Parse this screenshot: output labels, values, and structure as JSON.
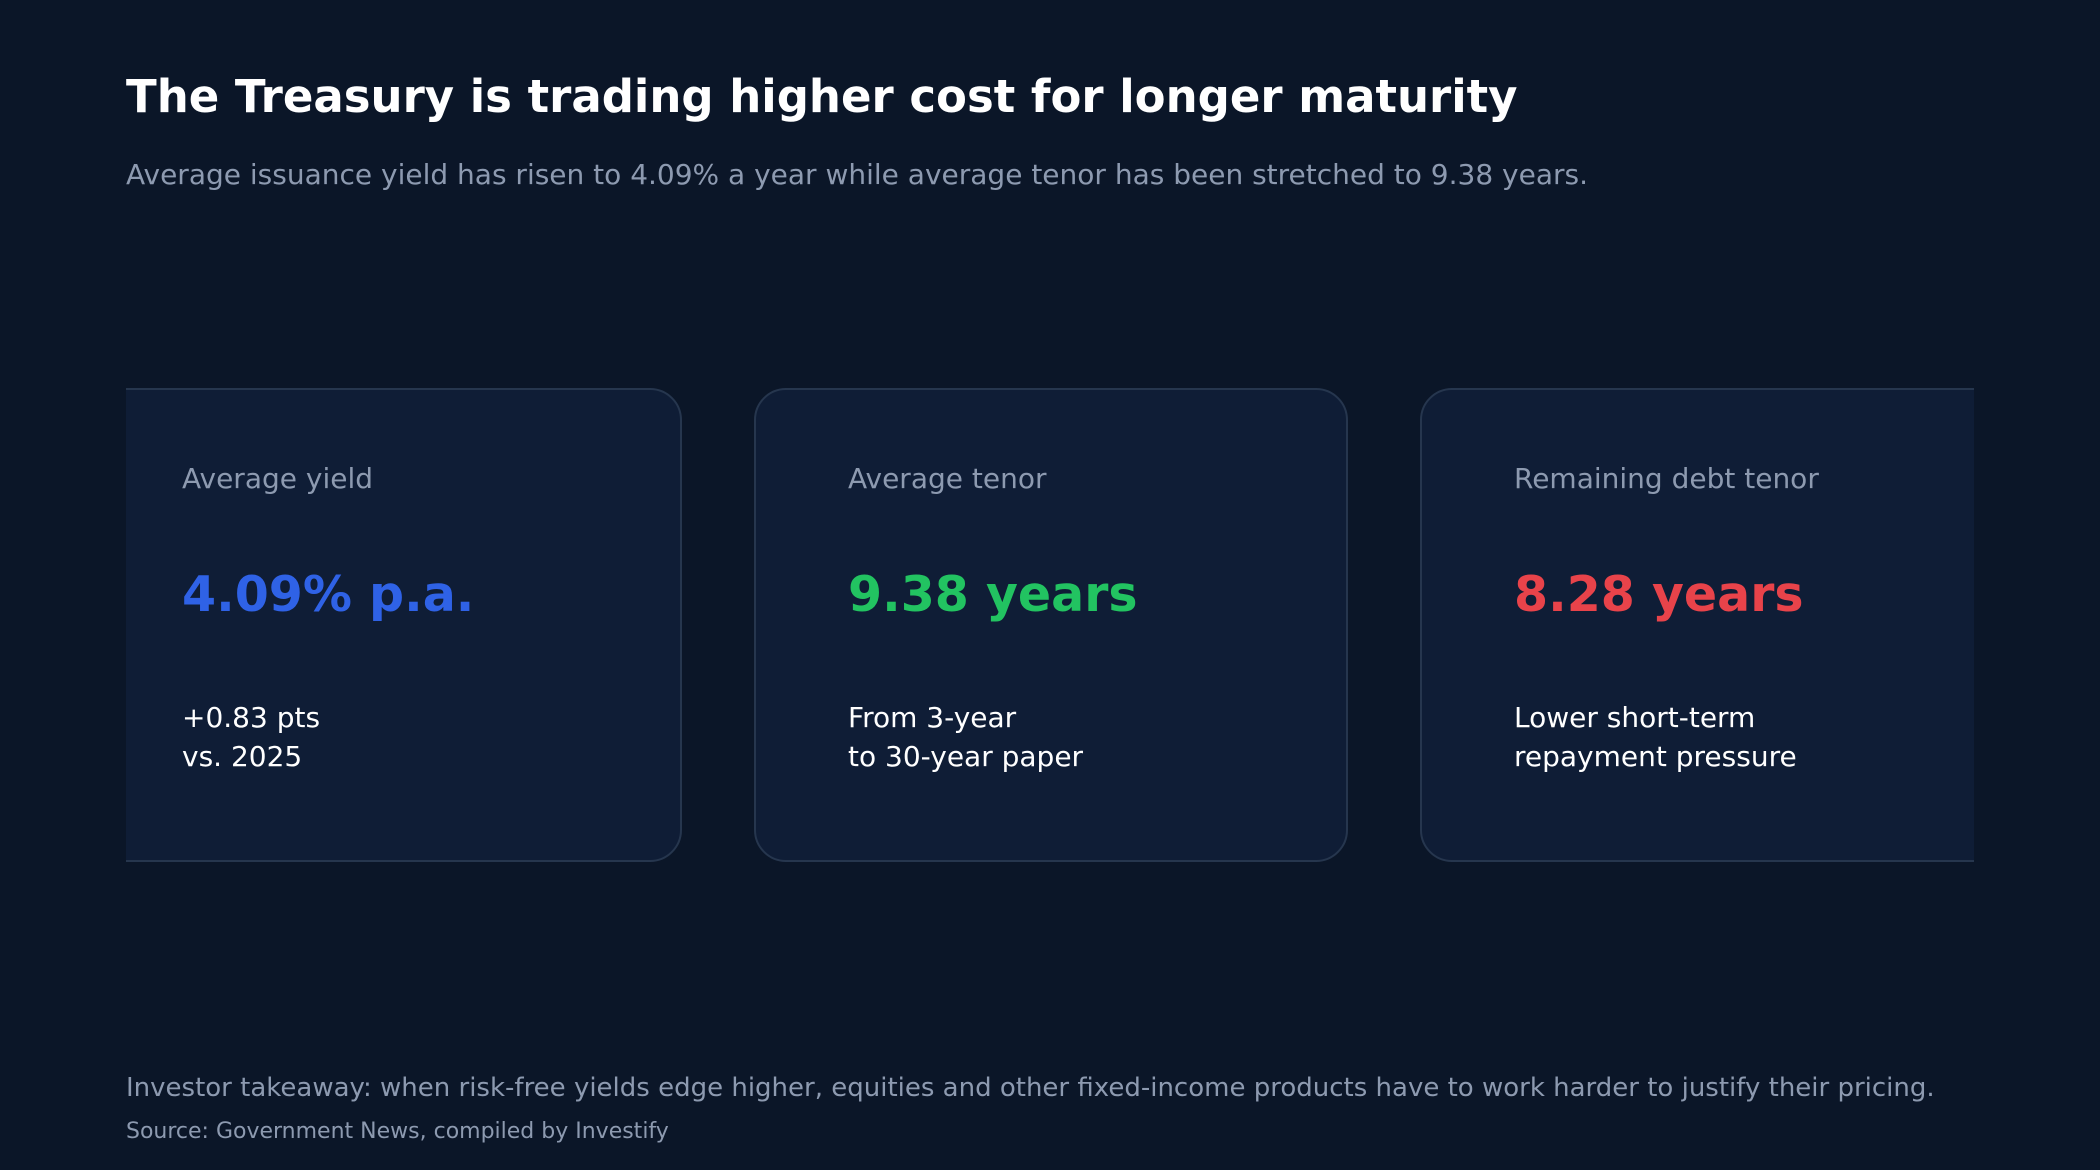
{
  "header": {
    "title": "The Treasury is trading higher cost for longer maturity",
    "subtitle": "Average issuance yield has risen to 4.09% a year while average tenor has been stretched to 9.38 years."
  },
  "cards": [
    {
      "label": "Average yield",
      "value": "4.09% p.a.",
      "color": "#2f62e6",
      "note_lines": [
        "+0.83 pts",
        "vs. 2025"
      ]
    },
    {
      "label": "Average tenor",
      "value": "9.38 years",
      "color": "#22c361",
      "note_lines": [
        "From 3-year",
        "to 30-year paper"
      ]
    },
    {
      "label": "Remaining debt tenor",
      "value": "8.28 years",
      "color": "#e8434a",
      "note_lines": [
        "Lower short-term",
        "repayment pressure"
      ]
    }
  ],
  "footer": {
    "takeaway": "Investor takeaway: when risk-free yields edge higher, equities and other fixed-income products have to work harder to justify their pricing.",
    "source": "Source: Government News, compiled by Investify"
  }
}
